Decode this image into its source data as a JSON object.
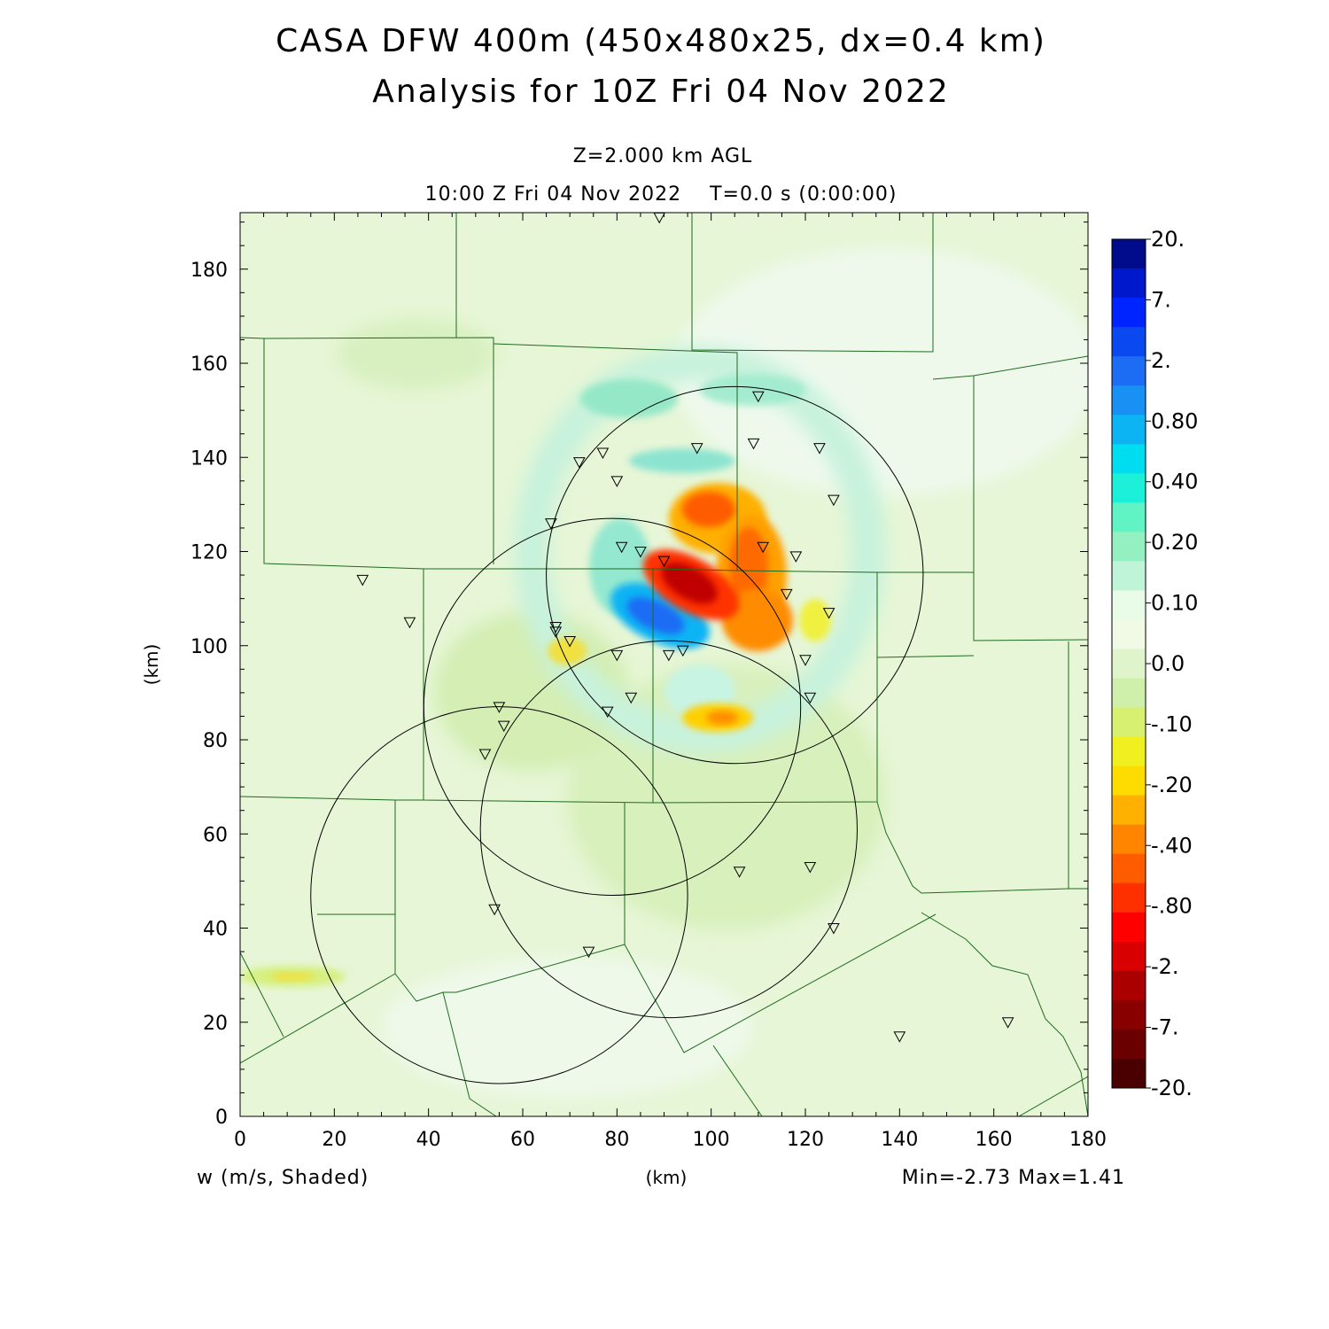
{
  "titles": {
    "line1": "CASA DFW 400m (450x480x25, dx=0.4 km)",
    "line2": "Analysis for 10Z Fri 04 Nov 2022",
    "level": "Z=2.000 km AGL",
    "time": "10:00 Z Fri 04 Nov 2022    T=0.0 s (0:00:00)"
  },
  "footer": {
    "variable": "w (m/s, Shaded)",
    "xunit": "(km)",
    "minmax": "Min=-2.73 Max=1.41"
  },
  "chart_data": {
    "type": "heatmap",
    "variable": "w",
    "units": "m/s",
    "xlabel": "(km)",
    "ylabel": "(km)",
    "xlim": [
      0,
      180
    ],
    "ylim": [
      0,
      192
    ],
    "xticks": [
      0,
      20,
      40,
      60,
      80,
      100,
      120,
      140,
      160,
      180
    ],
    "yticks": [
      0,
      20,
      40,
      60,
      80,
      100,
      120,
      140,
      160,
      180
    ],
    "min": -2.73,
    "max": 1.41,
    "colorbar": {
      "labels": [
        "20.",
        "7.",
        "2.",
        "0.80",
        "0.40",
        "0.20",
        "0.10",
        "0.0",
        "-.10",
        "-.20",
        "-.40",
        "-.80",
        "-2.",
        "-7.",
        "-20."
      ],
      "colors_top_to_bottom": [
        "#000c8c",
        "#0018cc",
        "#0024ff",
        "#0a48f0",
        "#1c6cf4",
        "#1890f4",
        "#0cb4f4",
        "#00dcf0",
        "#1cf0d8",
        "#60f4c4",
        "#94f0c0",
        "#c0f4d8",
        "#e8fce8",
        "#f0fae4",
        "#e0f4cc",
        "#cef0aa",
        "#d8f070",
        "#f0f020",
        "#ffdc00",
        "#ffb000",
        "#ff8400",
        "#ff5c00",
        "#ff3000",
        "#ff0000",
        "#d80000",
        "#aa0000",
        "#880000",
        "#6a0000",
        "#4a0000"
      ]
    },
    "features": [
      {
        "kind": "downdraft_max",
        "x": 95,
        "y": 111,
        "w_min": -2.73
      },
      {
        "kind": "updraft_max",
        "x": 88,
        "y": 106,
        "w_max": 1.41
      }
    ],
    "radar_circles": [
      {
        "cx": 105,
        "cy": 115,
        "r": 40
      },
      {
        "cx": 79,
        "cy": 87,
        "r": 40
      },
      {
        "cx": 91,
        "cy": 61,
        "r": 40
      },
      {
        "cx": 55,
        "cy": 47,
        "r": 40
      }
    ],
    "stations": [
      [
        89,
        191
      ],
      [
        110,
        153
      ],
      [
        109,
        143
      ],
      [
        123,
        142
      ],
      [
        97,
        142
      ],
      [
        77,
        141
      ],
      [
        72,
        139
      ],
      [
        80,
        135
      ],
      [
        126,
        131
      ],
      [
        66,
        126
      ],
      [
        81,
        121
      ],
      [
        111,
        121
      ],
      [
        85,
        120
      ],
      [
        90,
        118
      ],
      [
        118,
        119
      ],
      [
        116,
        111
      ],
      [
        26,
        114
      ],
      [
        36,
        105
      ],
      [
        125,
        107
      ],
      [
        67,
        103
      ],
      [
        67,
        104
      ],
      [
        70,
        101
      ],
      [
        80,
        98
      ],
      [
        91,
        98
      ],
      [
        94,
        99
      ],
      [
        120,
        97
      ],
      [
        83,
        89
      ],
      [
        78,
        86
      ],
      [
        121,
        89
      ],
      [
        55,
        87
      ],
      [
        56,
        83
      ],
      [
        52,
        77
      ],
      [
        121,
        53
      ],
      [
        106,
        52
      ],
      [
        54,
        44
      ],
      [
        126,
        40
      ],
      [
        74,
        35
      ],
      [
        163,
        20
      ],
      [
        140,
        17
      ]
    ]
  }
}
